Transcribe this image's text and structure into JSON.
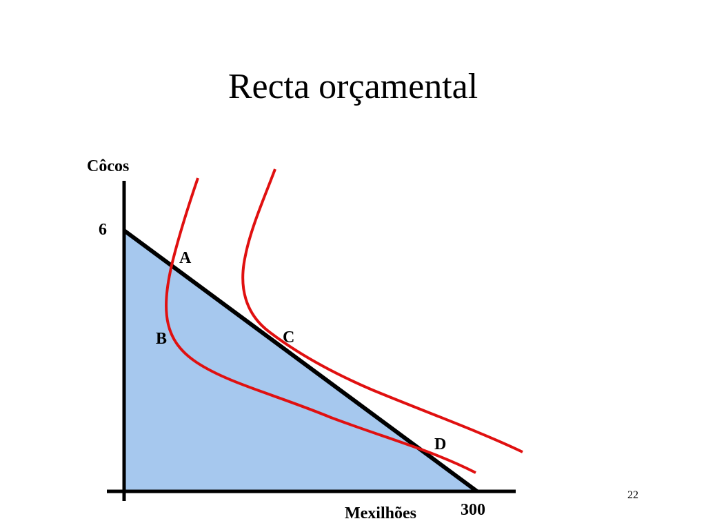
{
  "slide": {
    "title": "Recta orçamental",
    "page_number": "22"
  },
  "diagram": {
    "y_axis_label": "Côcos",
    "x_axis_label": "Mexilhões",
    "y_intercept_label": "6",
    "x_intercept_label": "300",
    "point_labels": {
      "a": "A",
      "b": "B",
      "c": "C",
      "d": "D"
    },
    "colors": {
      "budget_fill": "#a6c8ee",
      "budget_line": "#000000",
      "indifference_curve": "#e01010",
      "axes": "#000000"
    }
  }
}
